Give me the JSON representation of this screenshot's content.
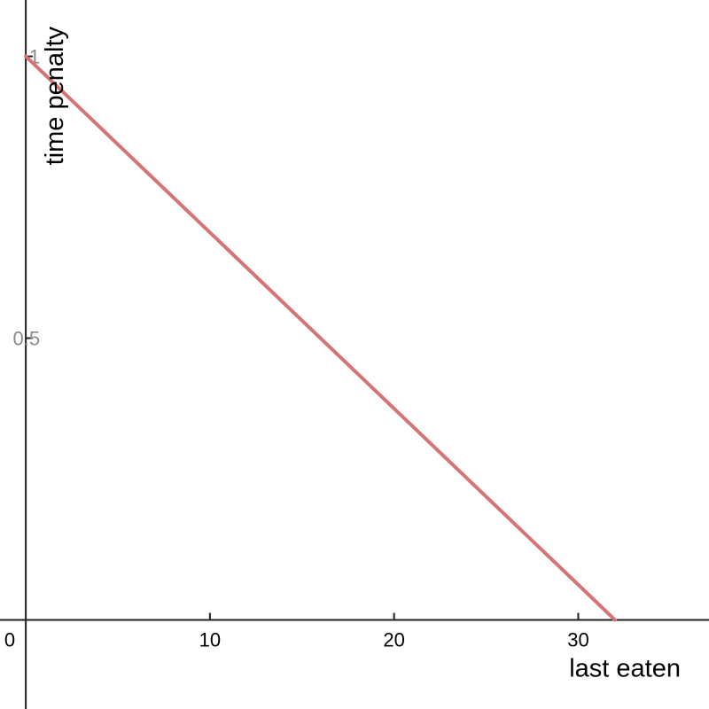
{
  "chart_data": {
    "type": "line",
    "xlabel": "last eaten",
    "ylabel": "time penalty",
    "xlim": [
      -1.4,
      37.1
    ],
    "ylim": [
      -0.158,
      1.1
    ],
    "x_ticks": [
      0,
      10,
      20,
      30
    ],
    "x_tick_labels": [
      "0",
      "10",
      "20",
      "30"
    ],
    "y_ticks": [
      0.5,
      1
    ],
    "y_tick_labels": [
      "0.5",
      "1"
    ],
    "grid": false,
    "series": [
      {
        "x": [
          0,
          32
        ],
        "y": [
          1,
          0
        ],
        "color": "#d47474"
      }
    ]
  }
}
